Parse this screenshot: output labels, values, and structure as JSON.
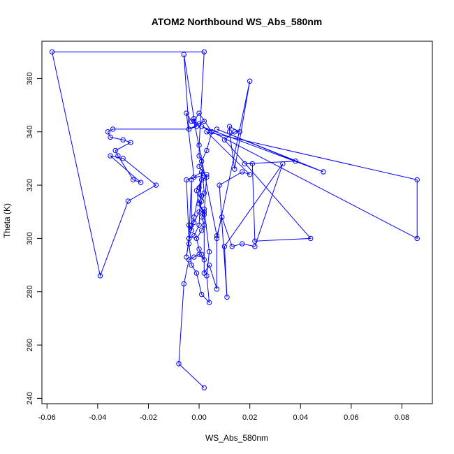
{
  "chart_data": {
    "type": "line",
    "title": "ATOM2 Northbound WS_Abs_580nm",
    "xlabel": "WS_Abs_580nm",
    "ylabel": "Theta (K)",
    "xlim": [
      -0.062,
      0.092
    ],
    "ylim": [
      238,
      374
    ],
    "xticks": [
      "-0.06",
      "-0.04",
      "-0.02",
      "0.00",
      "0.02",
      "0.04",
      "0.06",
      "0.08"
    ],
    "xtick_values": [
      -0.06,
      -0.04,
      -0.02,
      0.0,
      0.02,
      0.04,
      0.06,
      0.08
    ],
    "yticks": [
      "240",
      "260",
      "280",
      "300",
      "320",
      "340",
      "360"
    ],
    "ytick_values": [
      240,
      260,
      280,
      300,
      320,
      340,
      360
    ],
    "grid": false,
    "legend": "none",
    "marker": "open-circle",
    "color": "#0000ff",
    "series": [
      {
        "points": [
          [
            0.002,
            244
          ],
          [
            -0.008,
            253
          ],
          [
            -0.006,
            283
          ],
          [
            -0.004,
            292
          ],
          [
            -0.002,
            293
          ],
          [
            0.0,
            294
          ],
          [
            0.002,
            292
          ],
          [
            0.001,
            294
          ],
          [
            0.0,
            296
          ],
          [
            -0.001,
            300
          ],
          [
            0.001,
            303
          ],
          [
            0.002,
            305
          ],
          [
            0.001,
            308
          ],
          [
            0.002,
            310
          ],
          [
            0.0,
            313
          ],
          [
            0.001,
            316
          ],
          [
            0.0,
            319
          ],
          [
            0.001,
            322
          ],
          [
            0.003,
            323
          ],
          [
            0.0,
            327
          ],
          [
            0.003,
            333
          ],
          [
            0.005,
            340
          ],
          [
            0.0,
            347
          ],
          [
            -0.002,
            344
          ],
          [
            0.007,
            301
          ],
          [
            0.009,
            308
          ],
          [
            0.013,
            297
          ],
          [
            0.017,
            298
          ],
          [
            0.022,
            297
          ],
          [
            0.033,
            328
          ],
          [
            0.01,
            297
          ],
          [
            0.011,
            278
          ],
          [
            0.008,
            320
          ],
          [
            0.017,
            325
          ],
          [
            0.02,
            324
          ],
          [
            0.003,
            340
          ],
          [
            0.086,
            322
          ],
          [
            0.086,
            300
          ],
          [
            0.001,
            342
          ],
          [
            0.049,
            325
          ],
          [
            0.007,
            341
          ],
          [
            0.038,
            329
          ],
          [
            0.018,
            328
          ],
          [
            0.021,
            328
          ],
          [
            0.022,
            299
          ],
          [
            0.044,
            300
          ],
          [
            0.01,
            337
          ],
          [
            0.014,
            340
          ],
          [
            0.016,
            340
          ],
          [
            0.012,
            342
          ],
          [
            0.012,
            340
          ],
          [
            0.014,
            326
          ],
          [
            0.02,
            359
          ],
          [
            0.007,
            300
          ],
          [
            0.007,
            281
          ],
          [
            0.004,
            290
          ],
          [
            0.002,
            287
          ],
          [
            0.002,
            311
          ],
          [
            0.004,
            295
          ],
          [
            0.003,
            286
          ],
          [
            0.004,
            276
          ],
          [
            0.001,
            279
          ],
          [
            -0.001,
            287
          ],
          [
            -0.003,
            290
          ],
          [
            -0.004,
            298
          ],
          [
            -0.004,
            305
          ],
          [
            -0.003,
            303
          ],
          [
            -0.002,
            308
          ],
          [
            0.001,
            322
          ],
          [
            -0.001,
            318
          ],
          [
            0.0,
            313
          ],
          [
            0.002,
            309
          ],
          [
            0.003,
            324
          ],
          [
            -0.005,
            322
          ],
          [
            -0.004,
            300
          ],
          [
            -0.003,
            322
          ],
          [
            -0.003,
            305
          ],
          [
            -0.005,
            293
          ],
          [
            -0.004,
            300
          ],
          [
            -0.002,
            301
          ],
          [
            0.0,
            305
          ],
          [
            0.001,
            325
          ],
          [
            -0.002,
            323
          ],
          [
            -0.005,
            347
          ],
          [
            -0.003,
            344
          ],
          [
            0.0,
            343
          ],
          [
            0.002,
            344
          ],
          [
            -0.004,
            341
          ],
          [
            -0.006,
            369
          ],
          [
            -0.002,
            345
          ],
          [
            -0.001,
            342
          ],
          [
            -0.004,
            341
          ],
          [
            -0.034,
            341
          ],
          [
            -0.036,
            340
          ],
          [
            -0.035,
            338
          ],
          [
            -0.03,
            337
          ],
          [
            -0.027,
            336
          ],
          [
            -0.033,
            333
          ],
          [
            -0.032,
            331
          ],
          [
            -0.026,
            322
          ],
          [
            -0.023,
            321
          ],
          [
            -0.035,
            331
          ],
          [
            -0.03,
            330
          ],
          [
            -0.017,
            320
          ],
          [
            -0.028,
            314
          ],
          [
            -0.039,
            286
          ],
          [
            -0.058,
            370
          ],
          [
            0.002,
            370
          ],
          [
            0.0,
            335
          ],
          [
            0.0,
            331
          ],
          [
            0.001,
            329
          ],
          [
            0.002,
            317
          ],
          [
            0.001,
            314
          ],
          [
            0.0,
            310
          ],
          [
            -0.002,
            306
          ]
        ]
      }
    ]
  }
}
